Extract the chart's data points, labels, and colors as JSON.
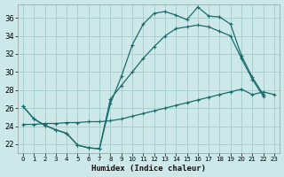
{
  "xlabel": "Humidex (Indice chaleur)",
  "bg_color": "#cde8e8",
  "grid_color": "#aacfcf",
  "line_color": "#1a6b6b",
  "xlim": [
    -0.5,
    23.5
  ],
  "ylim": [
    21.0,
    37.5
  ],
  "yticks": [
    22,
    24,
    26,
    28,
    30,
    32,
    34,
    36
  ],
  "xticks": [
    0,
    1,
    2,
    3,
    4,
    5,
    6,
    7,
    8,
    9,
    10,
    11,
    12,
    13,
    14,
    15,
    16,
    17,
    18,
    19,
    20,
    21,
    22,
    23
  ],
  "line1_x": [
    0,
    1,
    2,
    3,
    4,
    5,
    6,
    7,
    8,
    9,
    10,
    11,
    12,
    13,
    14,
    15,
    16,
    17,
    18,
    19,
    20,
    21,
    22
  ],
  "line1_y": [
    26.2,
    24.8,
    24.1,
    23.6,
    23.2,
    21.9,
    21.6,
    21.5,
    26.5,
    29.5,
    33.0,
    35.3,
    36.5,
    36.7,
    36.3,
    35.8,
    37.2,
    36.2,
    36.1,
    35.3,
    31.8,
    29.4,
    27.5
  ],
  "line2_x": [
    0,
    1,
    2,
    3,
    4,
    5,
    6,
    7,
    8,
    9,
    10,
    11,
    12,
    13,
    14,
    15,
    16,
    17,
    18,
    19,
    20,
    21,
    22
  ],
  "line2_y": [
    26.2,
    24.8,
    24.1,
    23.6,
    23.2,
    21.9,
    21.6,
    21.5,
    27.0,
    28.5,
    30.0,
    31.5,
    32.8,
    34.0,
    34.8,
    35.0,
    35.2,
    35.0,
    34.5,
    34.0,
    31.5,
    29.2,
    27.3
  ],
  "line3_x": [
    0,
    1,
    2,
    3,
    4,
    5,
    6,
    7,
    8,
    9,
    10,
    11,
    12,
    13,
    14,
    15,
    16,
    17,
    18,
    19,
    20,
    21,
    22,
    23
  ],
  "line3_y": [
    24.2,
    24.2,
    24.3,
    24.3,
    24.4,
    24.4,
    24.5,
    24.5,
    24.6,
    24.8,
    25.1,
    25.4,
    25.7,
    26.0,
    26.3,
    26.6,
    26.9,
    27.2,
    27.5,
    27.8,
    28.1,
    27.5,
    27.8,
    27.5
  ]
}
